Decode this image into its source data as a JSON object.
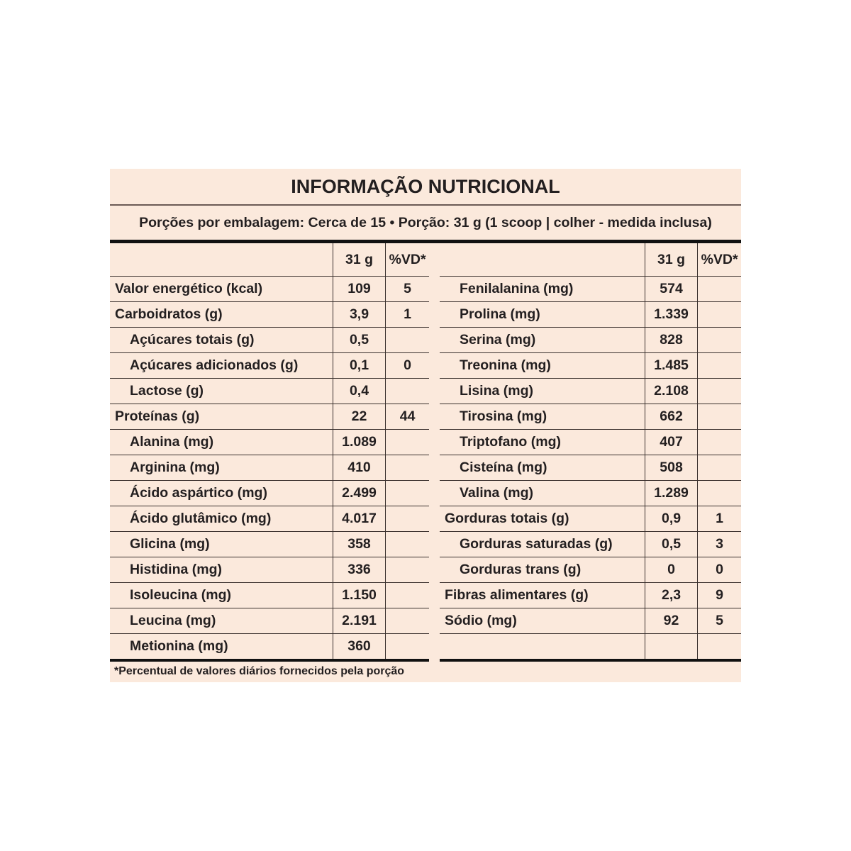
{
  "title": "INFORMAÇÃO NUTRICIONAL",
  "subtitle": "Porções por embalagem: Cerca de 15 • Porção: 31 g (1 scoop | colher - medida inclusa)",
  "header": {
    "col1": "",
    "col2": "31 g",
    "col3": "%VD*"
  },
  "left_rows": [
    {
      "label": "Valor energético (kcal)",
      "amount": "109",
      "vd": "5",
      "indent": false
    },
    {
      "label": "Carboidratos (g)",
      "amount": "3,9",
      "vd": "1",
      "indent": false
    },
    {
      "label": "Açúcares totais (g)",
      "amount": "0,5",
      "vd": "",
      "indent": true
    },
    {
      "label": "Açúcares adicionados (g)",
      "amount": "0,1",
      "vd": "0",
      "indent": true
    },
    {
      "label": "Lactose (g)",
      "amount": "0,4",
      "vd": "",
      "indent": true
    },
    {
      "label": "Proteínas (g)",
      "amount": "22",
      "vd": "44",
      "indent": false
    },
    {
      "label": "Alanina (mg)",
      "amount": "1.089",
      "vd": "",
      "indent": true
    },
    {
      "label": "Arginina (mg)",
      "amount": "410",
      "vd": "",
      "indent": true
    },
    {
      "label": "Ácido aspártico (mg)",
      "amount": "2.499",
      "vd": "",
      "indent": true
    },
    {
      "label": "Ácido glutâmico (mg)",
      "amount": "4.017",
      "vd": "",
      "indent": true
    },
    {
      "label": "Glicina (mg)",
      "amount": "358",
      "vd": "",
      "indent": true
    },
    {
      "label": "Histidina (mg)",
      "amount": "336",
      "vd": "",
      "indent": true
    },
    {
      "label": "Isoleucina (mg)",
      "amount": "1.150",
      "vd": "",
      "indent": true
    },
    {
      "label": "Leucina (mg)",
      "amount": "2.191",
      "vd": "",
      "indent": true
    },
    {
      "label": "Metionina (mg)",
      "amount": "360",
      "vd": "",
      "indent": true
    }
  ],
  "right_rows": [
    {
      "label": "Fenilalanina (mg)",
      "amount": "574",
      "vd": "",
      "indent": true
    },
    {
      "label": "Prolina (mg)",
      "amount": "1.339",
      "vd": "",
      "indent": true
    },
    {
      "label": "Serina (mg)",
      "amount": "828",
      "vd": "",
      "indent": true
    },
    {
      "label": "Treonina (mg)",
      "amount": "1.485",
      "vd": "",
      "indent": true
    },
    {
      "label": "Lisina (mg)",
      "amount": "2.108",
      "vd": "",
      "indent": true
    },
    {
      "label": "Tirosina (mg)",
      "amount": "662",
      "vd": "",
      "indent": true
    },
    {
      "label": "Triptofano (mg)",
      "amount": "407",
      "vd": "",
      "indent": true
    },
    {
      "label": "Cisteína (mg)",
      "amount": "508",
      "vd": "",
      "indent": true
    },
    {
      "label": "Valina (mg)",
      "amount": "1.289",
      "vd": "",
      "indent": true
    },
    {
      "label": "Gorduras totais (g)",
      "amount": "0,9",
      "vd": "1",
      "indent": false
    },
    {
      "label": "Gorduras saturadas (g)",
      "amount": "0,5",
      "vd": "3",
      "indent": true
    },
    {
      "label": "Gorduras trans (g)",
      "amount": "0",
      "vd": "0",
      "indent": true
    },
    {
      "label": "Fibras alimentares (g)",
      "amount": "2,3",
      "vd": "9",
      "indent": false
    },
    {
      "label": "Sódio (mg)",
      "amount": "92",
      "vd": "5",
      "indent": false
    },
    {
      "label": "",
      "amount": "",
      "vd": "",
      "indent": false
    }
  ],
  "footer": "*Percentual de valores diários fornecidos pela porção",
  "colors": {
    "background": "#fbe9dc",
    "text": "#231f20",
    "rule": "#111111"
  }
}
